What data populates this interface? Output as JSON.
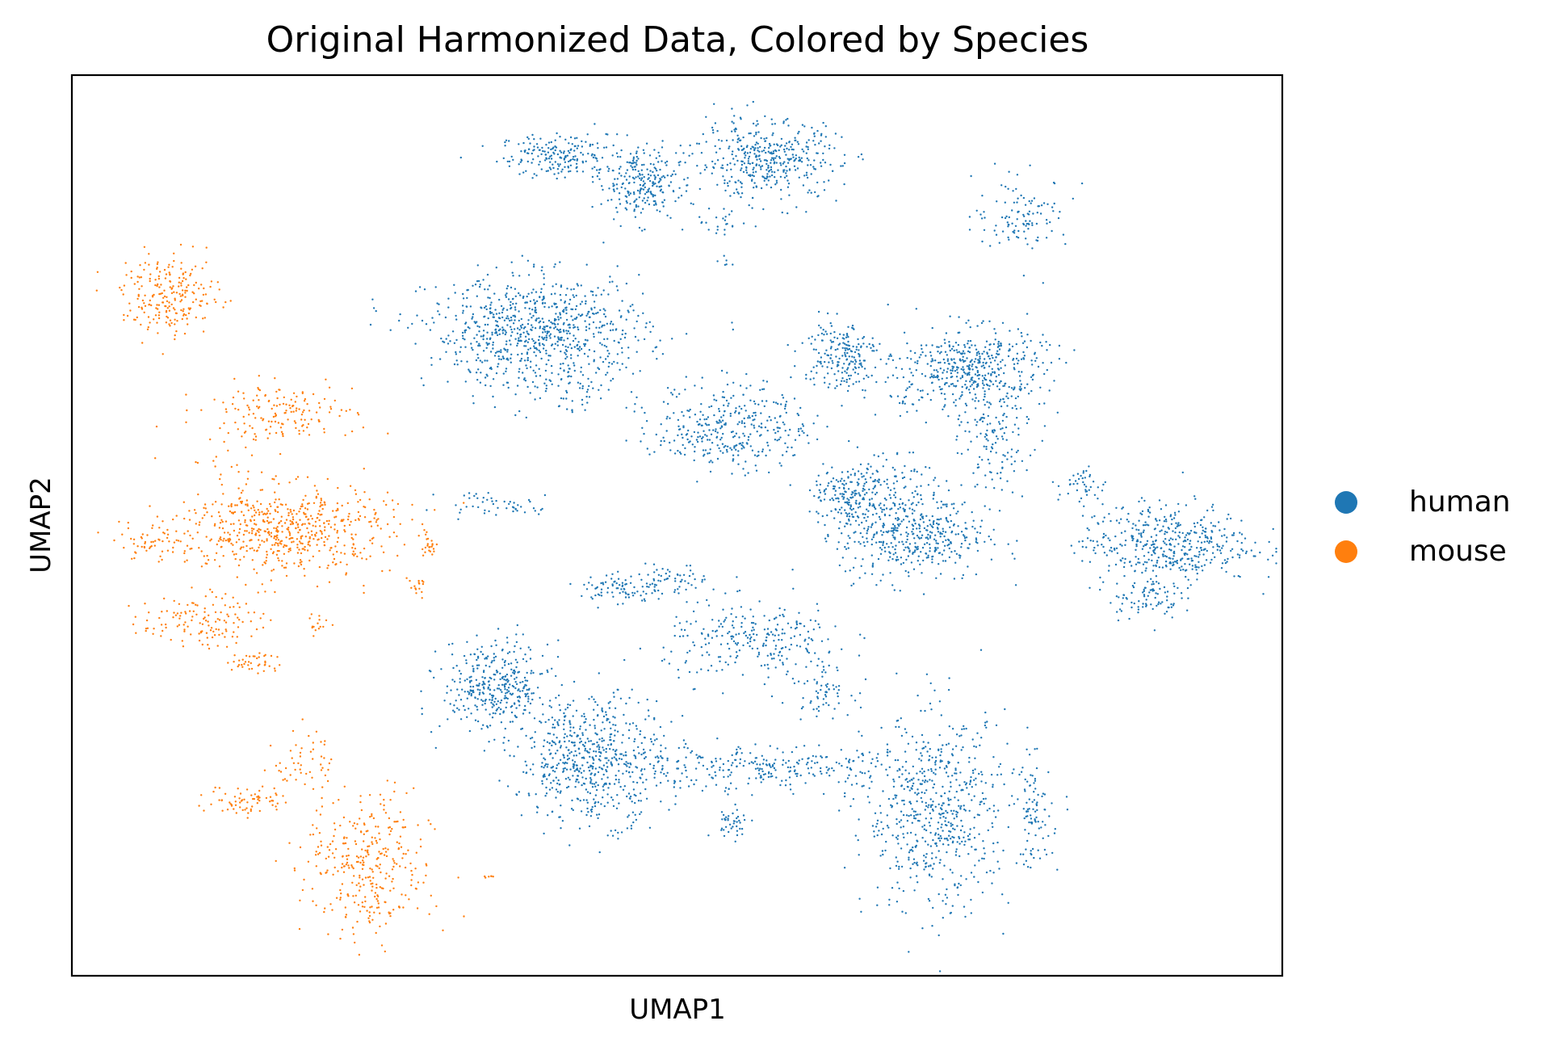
{
  "chart_data": {
    "type": "scatter",
    "title": "Original Harmonized Data, Colored by Species",
    "xlabel": "UMAP1",
    "ylabel": "UMAP2",
    "xlim": [
      0,
      100
    ],
    "ylim": [
      0,
      100
    ],
    "ticks": false,
    "grid": false,
    "legend_position": "right",
    "marker_size": 1.2,
    "series": [
      {
        "name": "human",
        "color": "#1f77b4",
        "clusters": [
          {
            "cx": 40.6,
            "cy": 91.0,
            "sx": 2.6,
            "sy": 1.2,
            "n": 200
          },
          {
            "cx": 47.0,
            "cy": 88.0,
            "sx": 1.6,
            "sy": 2.0,
            "n": 240
          },
          {
            "cx": 57.5,
            "cy": 90.5,
            "sx": 3.0,
            "sy": 2.2,
            "n": 420
          },
          {
            "cx": 53.5,
            "cy": 83.5,
            "sx": 1.2,
            "sy": 0.6,
            "n": 20
          },
          {
            "cx": 54.0,
            "cy": 79.5,
            "sx": 0.3,
            "sy": 0.3,
            "n": 6
          },
          {
            "cx": 78.5,
            "cy": 84.5,
            "sx": 2.0,
            "sy": 2.0,
            "n": 110
          },
          {
            "cx": 38.5,
            "cy": 71.5,
            "sx": 4.5,
            "sy": 3.0,
            "n": 800
          },
          {
            "cx": 41.0,
            "cy": 65.0,
            "sx": 2.5,
            "sy": 1.5,
            "n": 60
          },
          {
            "cx": 63.5,
            "cy": 69.0,
            "sx": 1.6,
            "sy": 2.0,
            "n": 200
          },
          {
            "cx": 74.5,
            "cy": 67.5,
            "sx": 3.0,
            "sy": 2.2,
            "n": 450
          },
          {
            "cx": 76.0,
            "cy": 60.0,
            "sx": 1.6,
            "sy": 3.0,
            "n": 140
          },
          {
            "cx": 54.5,
            "cy": 61.0,
            "sx": 3.2,
            "sy": 2.4,
            "n": 350
          },
          {
            "cx": 69.0,
            "cy": 64.0,
            "sx": 1.2,
            "sy": 1.0,
            "n": 20
          },
          {
            "cx": 64.0,
            "cy": 53.0,
            "sx": 1.4,
            "sy": 1.6,
            "n": 150
          },
          {
            "cx": 69.5,
            "cy": 49.0,
            "sx": 3.0,
            "sy": 2.6,
            "n": 450
          },
          {
            "cx": 67.0,
            "cy": 55.0,
            "sx": 2.0,
            "sy": 2.0,
            "n": 90
          },
          {
            "cx": 33.5,
            "cy": 52.5,
            "sx": 1.5,
            "sy": 0.6,
            "n": 30
          },
          {
            "cx": 37.5,
            "cy": 52.0,
            "sx": 1.0,
            "sy": 0.5,
            "n": 20
          },
          {
            "cx": 83.5,
            "cy": 54.5,
            "sx": 1.0,
            "sy": 1.0,
            "n": 40
          },
          {
            "cx": 90.5,
            "cy": 48.0,
            "sx": 3.5,
            "sy": 2.2,
            "n": 450
          },
          {
            "cx": 88.5,
            "cy": 42.0,
            "sx": 1.5,
            "sy": 1.2,
            "n": 80
          },
          {
            "cx": 45.5,
            "cy": 43.0,
            "sx": 1.8,
            "sy": 0.9,
            "n": 90
          },
          {
            "cx": 50.0,
            "cy": 44.0,
            "sx": 1.3,
            "sy": 0.8,
            "n": 50
          },
          {
            "cx": 56.5,
            "cy": 37.0,
            "sx": 3.8,
            "sy": 2.2,
            "n": 260
          },
          {
            "cx": 62.0,
            "cy": 32.0,
            "sx": 1.2,
            "sy": 1.5,
            "n": 60
          },
          {
            "cx": 35.0,
            "cy": 32.0,
            "sx": 2.2,
            "sy": 2.5,
            "n": 360
          },
          {
            "cx": 43.0,
            "cy": 24.0,
            "sx": 3.0,
            "sy": 3.5,
            "n": 600
          },
          {
            "cx": 57.0,
            "cy": 23.0,
            "sx": 6.5,
            "sy": 1.2,
            "n": 280
          },
          {
            "cx": 54.5,
            "cy": 17.0,
            "sx": 0.8,
            "sy": 0.8,
            "n": 40
          },
          {
            "cx": 71.5,
            "cy": 18.0,
            "sx": 3.0,
            "sy": 5.5,
            "n": 600
          },
          {
            "cx": 79.5,
            "cy": 18.0,
            "sx": 0.8,
            "sy": 3.0,
            "n": 90
          }
        ]
      },
      {
        "name": "mouse",
        "color": "#ff7f0e",
        "clusters": [
          {
            "cx": 8.2,
            "cy": 75.5,
            "sx": 2.0,
            "sy": 2.2,
            "n": 220
          },
          {
            "cx": 17.0,
            "cy": 62.5,
            "sx": 3.2,
            "sy": 1.6,
            "n": 160
          },
          {
            "cx": 13.5,
            "cy": 56.0,
            "sx": 1.2,
            "sy": 2.0,
            "n": 20
          },
          {
            "cx": 17.5,
            "cy": 49.5,
            "sx": 4.5,
            "sy": 2.5,
            "n": 600
          },
          {
            "cx": 6.5,
            "cy": 48.0,
            "sx": 1.8,
            "sy": 0.9,
            "n": 50
          },
          {
            "cx": 29.5,
            "cy": 47.5,
            "sx": 0.5,
            "sy": 0.6,
            "n": 20
          },
          {
            "cx": 28.5,
            "cy": 43.0,
            "sx": 0.4,
            "sy": 0.5,
            "n": 15
          },
          {
            "cx": 10.5,
            "cy": 39.5,
            "sx": 2.4,
            "sy": 1.4,
            "n": 130
          },
          {
            "cx": 15.2,
            "cy": 34.8,
            "sx": 1.0,
            "sy": 0.7,
            "n": 40
          },
          {
            "cx": 20.5,
            "cy": 39.0,
            "sx": 0.6,
            "sy": 0.5,
            "n": 15
          },
          {
            "cx": 14.5,
            "cy": 19.5,
            "sx": 1.7,
            "sy": 0.9,
            "n": 70
          },
          {
            "cx": 19.2,
            "cy": 24.0,
            "sx": 1.2,
            "sy": 1.8,
            "n": 50
          },
          {
            "cx": 24.5,
            "cy": 12.0,
            "sx": 2.6,
            "sy": 4.0,
            "n": 330
          },
          {
            "cx": 34.5,
            "cy": 11.0,
            "sx": 0.4,
            "sy": 0.3,
            "n": 6
          }
        ]
      }
    ]
  }
}
